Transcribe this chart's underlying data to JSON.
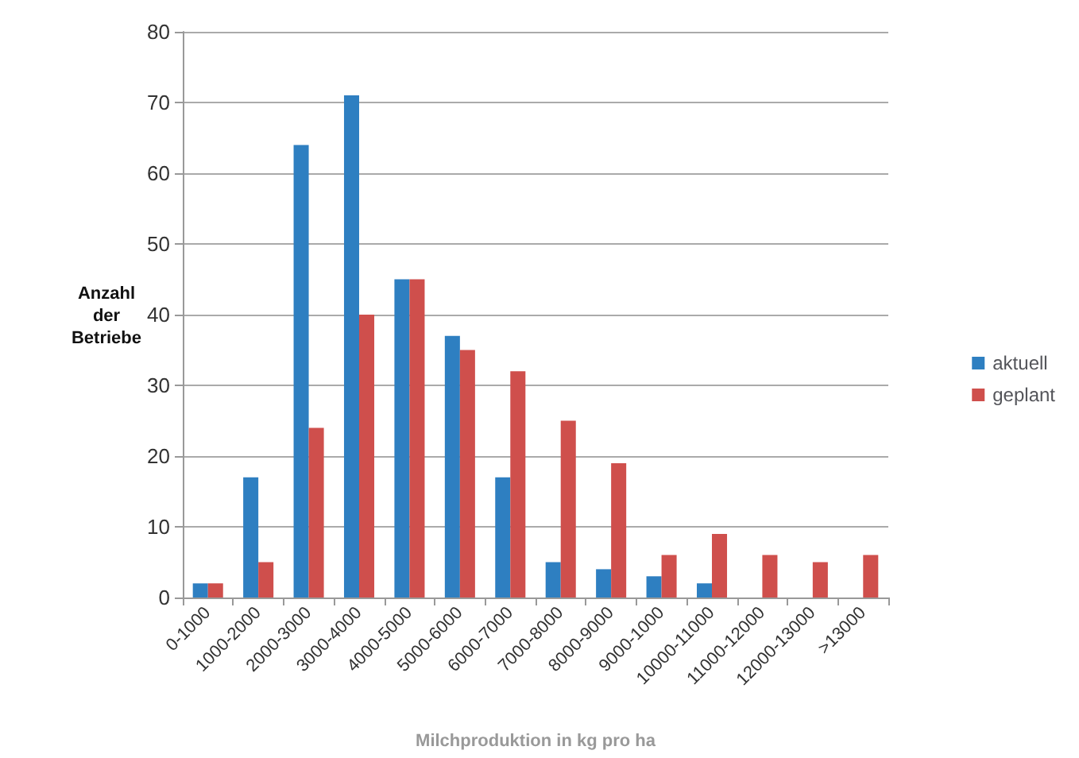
{
  "chart_data": {
    "type": "bar",
    "xlabel": "Milchproduktion in kg pro ha",
    "ylabel": "Anzahl\nder\nBetriebe",
    "categories": [
      "0-1000",
      "1000-2000",
      "2000-3000",
      "3000-4000",
      "4000-5000",
      "5000-6000",
      "6000-7000",
      "7000-8000",
      "8000-9000",
      "9000-1000",
      "10000-11000",
      "11000-12000",
      "12000-13000",
      ">13000"
    ],
    "series": [
      {
        "name": "aktuell",
        "color": "#2e7fc1",
        "values": [
          2,
          17,
          64,
          71,
          45,
          37,
          17,
          5,
          4,
          3,
          2,
          0,
          0,
          0
        ]
      },
      {
        "name": "geplant",
        "color": "#cf4f4c",
        "values": [
          2,
          5,
          24,
          40,
          45,
          35,
          32,
          25,
          19,
          6,
          9,
          6,
          5,
          6
        ]
      }
    ],
    "ylim": [
      0,
      80
    ],
    "yticks": [
      0,
      10,
      20,
      30,
      40,
      50,
      60,
      70,
      80
    ],
    "grid": "y",
    "legend": "right"
  }
}
